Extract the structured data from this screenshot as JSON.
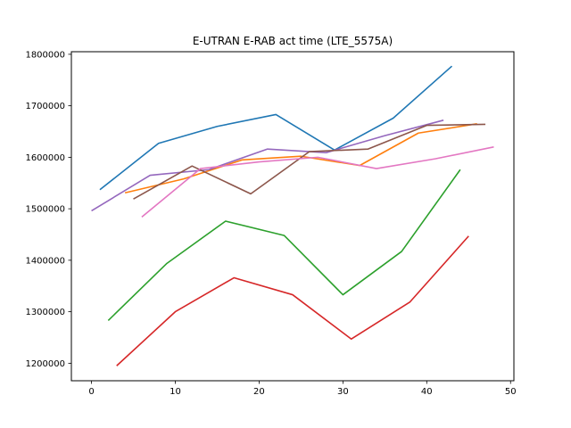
{
  "chart_data": {
    "type": "line",
    "title": "E-UTRAN E-RAB act time (LTE_5575A)",
    "xlabel": "",
    "ylabel": "",
    "xlim": [
      -2.4,
      50.4
    ],
    "ylim": [
      1166000,
      1805000
    ],
    "xticks": [
      0,
      10,
      20,
      30,
      40,
      50
    ],
    "yticks": [
      1200000,
      1300000,
      1400000,
      1500000,
      1600000,
      1700000,
      1800000
    ],
    "grid": false,
    "series": [
      {
        "color": "#1f77b4",
        "x": [
          1,
          8,
          15,
          22,
          29,
          36,
          43
        ],
        "y": [
          1537000,
          1627000,
          1660000,
          1683000,
          1614000,
          1676000,
          1777000
        ]
      },
      {
        "color": "#ff7f0e",
        "x": [
          4,
          11,
          18,
          25,
          32,
          39,
          46
        ],
        "y": [
          1531000,
          1558000,
          1595000,
          1602000,
          1584000,
          1647000,
          1665000
        ]
      },
      {
        "color": "#2ca02c",
        "x": [
          2,
          9,
          16,
          23,
          30,
          37,
          44
        ],
        "y": [
          1283000,
          1394000,
          1476000,
          1448000,
          1333000,
          1417000,
          1576000
        ]
      },
      {
        "color": "#d62728",
        "x": [
          3,
          10,
          17,
          24,
          31,
          38,
          45
        ],
        "y": [
          1195000,
          1300000,
          1366000,
          1333000,
          1247000,
          1319000,
          1447000
        ]
      },
      {
        "color": "#9467bd",
        "x": [
          0,
          7,
          14,
          21,
          28,
          35,
          42
        ],
        "y": [
          1496000,
          1565000,
          1576000,
          1616000,
          1609000,
          1642000,
          1672000
        ]
      },
      {
        "color": "#8c564b",
        "x": [
          5,
          12,
          19,
          26,
          33,
          40,
          47
        ],
        "y": [
          1519000,
          1583000,
          1529000,
          1611000,
          1616000,
          1662000,
          1664000
        ]
      },
      {
        "color": "#e377c2",
        "x": [
          6,
          13,
          20,
          27,
          34,
          41,
          48
        ],
        "y": [
          1484000,
          1578000,
          1591000,
          1600000,
          1578000,
          1597000,
          1620000
        ]
      }
    ]
  }
}
